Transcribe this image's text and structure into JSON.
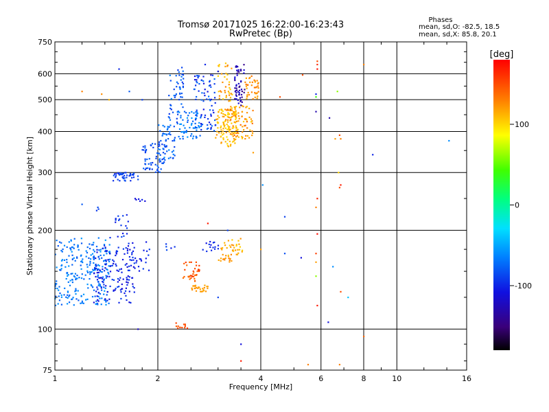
{
  "header": {
    "title_line1": "Tromsø 20171025 16:22:00-16:23:43",
    "title_line2": "RwPretec (Bp)"
  },
  "phases": {
    "heading": "Phases",
    "line_o": "mean, sd,O: -82.5, 18.5",
    "line_x": "mean, sd,X: 85.8, 20.1"
  },
  "chart_data": {
    "type": "scatter",
    "xlabel": "Frequency [MHz]",
    "ylabel": "Stationary phase Virtual Height [km]",
    "x_scale": "log",
    "y_scale": "log",
    "xlim": [
      1,
      16
    ],
    "ylim": [
      75,
      750
    ],
    "x_ticks": [
      {
        "value": 1,
        "label": "1"
      },
      {
        "value": 2,
        "label": "2"
      },
      {
        "value": 4,
        "label": "4"
      },
      {
        "value": 6,
        "label": "6"
      },
      {
        "value": 8,
        "label": "8"
      },
      {
        "value": 10,
        "label": "10"
      },
      {
        "value": 16,
        "label": "16"
      }
    ],
    "y_ticks": [
      {
        "value": 75,
        "label": "75"
      },
      {
        "value": 100,
        "label": "100"
      },
      {
        "value": 200,
        "label": "200"
      },
      {
        "value": 300,
        "label": "300"
      },
      {
        "value": 400,
        "label": "400"
      },
      {
        "value": 500,
        "label": "500"
      },
      {
        "value": 600,
        "label": "600"
      },
      {
        "value": 750,
        "label": "750"
      }
    ],
    "grid": true,
    "colorbar": {
      "title": "[deg]",
      "range": [
        -180,
        180
      ],
      "ticks": [
        {
          "value": 100,
          "label": "100"
        },
        {
          "value": 0,
          "label": "0"
        },
        {
          "value": -100,
          "label": "-100"
        }
      ]
    },
    "clusters": [
      {
        "f": [
          1.0,
          1.45
        ],
        "h": [
          118,
          190
        ],
        "phase": [
          -82,
          -55
        ],
        "n": 260
      },
      {
        "f": [
          1.3,
          1.72
        ],
        "h": [
          120,
          180
        ],
        "phase": [
          -115,
          -88
        ],
        "n": 140
      },
      {
        "f": [
          1.5,
          1.65
        ],
        "h": [
          190,
          225
        ],
        "phase": [
          -105,
          -85
        ],
        "n": 18
      },
      {
        "f": [
          1.6,
          1.9
        ],
        "h": [
          150,
          185
        ],
        "phase": [
          -110,
          -90
        ],
        "n": 28
      },
      {
        "f": [
          1.48,
          1.75
        ],
        "h": [
          283,
          300
        ],
        "phase": [
          -100,
          -80
        ],
        "n": 45
      },
      {
        "f": [
          1.8,
          2.1
        ],
        "h": [
          300,
          370
        ],
        "phase": [
          -95,
          -72
        ],
        "n": 60
      },
      {
        "f": [
          2.0,
          2.25
        ],
        "h": [
          330,
          420
        ],
        "phase": [
          -90,
          -60
        ],
        "n": 55
      },
      {
        "f": [
          2.15,
          2.4
        ],
        "h": [
          420,
          630
        ],
        "phase": [
          -95,
          -65
        ],
        "n": 55
      },
      {
        "f": [
          2.3,
          2.7
        ],
        "h": [
          380,
          460
        ],
        "phase": [
          -80,
          -55
        ],
        "n": 60
      },
      {
        "f": [
          2.55,
          2.95
        ],
        "h": [
          400,
          600
        ],
        "phase": [
          -115,
          -70
        ],
        "n": 80
      },
      {
        "f": [
          2.95,
          3.4
        ],
        "h": [
          360,
          470
        ],
        "phase": [
          95,
          125
        ],
        "n": 110
      },
      {
        "f": [
          3.1,
          3.8
        ],
        "h": [
          380,
          480
        ],
        "phase": [
          100,
          140
        ],
        "n": 90
      },
      {
        "f": [
          3.0,
          3.3
        ],
        "h": [
          490,
          650
        ],
        "phase": [
          100,
          130
        ],
        "n": 40
      },
      {
        "f": [
          3.35,
          3.6
        ],
        "h": [
          480,
          640
        ],
        "phase": [
          -150,
          -110
        ],
        "n": 55
      },
      {
        "f": [
          3.6,
          3.95
        ],
        "h": [
          500,
          600
        ],
        "phase": [
          110,
          135
        ],
        "n": 40
      },
      {
        "f": [
          2.1,
          2.25
        ],
        "h": [
          170,
          182
        ],
        "phase": [
          -105,
          -85
        ],
        "n": 5
      },
      {
        "f": [
          2.35,
          2.65
        ],
        "h": [
          140,
          160
        ],
        "phase": [
          135,
          160
        ],
        "n": 35
      },
      {
        "f": [
          2.5,
          2.8
        ],
        "h": [
          130,
          136
        ],
        "phase": [
          115,
          125
        ],
        "n": 28
      },
      {
        "f": [
          2.7,
          3.05
        ],
        "h": [
          170,
          185
        ],
        "phase": [
          -110,
          -90
        ],
        "n": 15
      },
      {
        "f": [
          3.0,
          3.3
        ],
        "h": [
          160,
          185
        ],
        "phase": [
          110,
          130
        ],
        "n": 22
      },
      {
        "f": [
          3.2,
          3.55
        ],
        "h": [
          165,
          190
        ],
        "phase": [
          100,
          125
        ],
        "n": 25
      },
      {
        "f": [
          2.25,
          2.45
        ],
        "h": [
          100,
          105
        ],
        "phase": [
          145,
          160
        ],
        "n": 12
      },
      {
        "f": [
          1.7,
          1.85
        ],
        "h": [
          245,
          250
        ],
        "phase": [
          -115,
          -100
        ],
        "n": 6
      },
      {
        "f": [
          1.32,
          1.35
        ],
        "h": [
          228,
          236
        ],
        "phase": [
          -95,
          -85
        ],
        "n": 3
      }
    ],
    "points": [
      {
        "f": 1.2,
        "h": 530,
        "phase": 130
      },
      {
        "f": 1.37,
        "h": 520,
        "phase": 125
      },
      {
        "f": 1.44,
        "h": 500,
        "phase": 110
      },
      {
        "f": 1.54,
        "h": 620,
        "phase": -100
      },
      {
        "f": 1.65,
        "h": 530,
        "phase": -80
      },
      {
        "f": 1.8,
        "h": 500,
        "phase": -90
      },
      {
        "f": 1.75,
        "h": 100,
        "phase": -120
      },
      {
        "f": 1.45,
        "h": 190,
        "phase": -95
      },
      {
        "f": 1.2,
        "h": 240,
        "phase": -80
      },
      {
        "f": 2.75,
        "h": 640,
        "phase": -100
      },
      {
        "f": 3.0,
        "h": 610,
        "phase": -105
      },
      {
        "f": 3.5,
        "h": 90,
        "phase": -110
      },
      {
        "f": 3.5,
        "h": 80,
        "phase": 170
      },
      {
        "f": 4.05,
        "h": 275,
        "phase": -60
      },
      {
        "f": 4.55,
        "h": 510,
        "phase": 150
      },
      {
        "f": 4.7,
        "h": 220,
        "phase": -90
      },
      {
        "f": 4.7,
        "h": 170,
        "phase": -85
      },
      {
        "f": 5.25,
        "h": 165,
        "phase": -110
      },
      {
        "f": 5.3,
        "h": 595,
        "phase": 150
      },
      {
        "f": 5.85,
        "h": 655,
        "phase": 150
      },
      {
        "f": 5.85,
        "h": 640,
        "phase": 165
      },
      {
        "f": 5.85,
        "h": 620,
        "phase": 175
      },
      {
        "f": 5.8,
        "h": 520,
        "phase": -100
      },
      {
        "f": 5.8,
        "h": 510,
        "phase": 40
      },
      {
        "f": 5.8,
        "h": 460,
        "phase": -130
      },
      {
        "f": 5.85,
        "h": 250,
        "phase": 165
      },
      {
        "f": 5.8,
        "h": 235,
        "phase": 130
      },
      {
        "f": 5.85,
        "h": 195,
        "phase": 175
      },
      {
        "f": 5.8,
        "h": 170,
        "phase": 155
      },
      {
        "f": 5.8,
        "h": 160,
        "phase": 120
      },
      {
        "f": 5.8,
        "h": 145,
        "phase": 60
      },
      {
        "f": 5.85,
        "h": 118,
        "phase": 170
      },
      {
        "f": 6.35,
        "h": 440,
        "phase": -130
      },
      {
        "f": 6.5,
        "h": 155,
        "phase": -60
      },
      {
        "f": 6.3,
        "h": 105,
        "phase": -110
      },
      {
        "f": 6.7,
        "h": 530,
        "phase": 60
      },
      {
        "f": 6.8,
        "h": 390,
        "phase": 150
      },
      {
        "f": 6.85,
        "h": 380,
        "phase": 130
      },
      {
        "f": 6.6,
        "h": 380,
        "phase": 120
      },
      {
        "f": 6.75,
        "h": 300,
        "phase": 100
      },
      {
        "f": 6.85,
        "h": 275,
        "phase": 170
      },
      {
        "f": 6.8,
        "h": 270,
        "phase": 150
      },
      {
        "f": 6.85,
        "h": 130,
        "phase": 150
      },
      {
        "f": 7.2,
        "h": 125,
        "phase": -40
      },
      {
        "f": 6.8,
        "h": 78,
        "phase": 130
      },
      {
        "f": 8.0,
        "h": 640,
        "phase": 130
      },
      {
        "f": 8.0,
        "h": 95,
        "phase": 140
      },
      {
        "f": 8.5,
        "h": 340,
        "phase": -100
      },
      {
        "f": 14.2,
        "h": 375,
        "phase": -60
      },
      {
        "f": 3.2,
        "h": 200,
        "phase": -90
      },
      {
        "f": 2.8,
        "h": 210,
        "phase": 170
      },
      {
        "f": 3.0,
        "h": 125,
        "phase": -90
      },
      {
        "f": 5.5,
        "h": 78,
        "phase": 130
      },
      {
        "f": 3.8,
        "h": 345,
        "phase": 120
      },
      {
        "f": 4.0,
        "h": 175,
        "phase": 120
      }
    ]
  }
}
